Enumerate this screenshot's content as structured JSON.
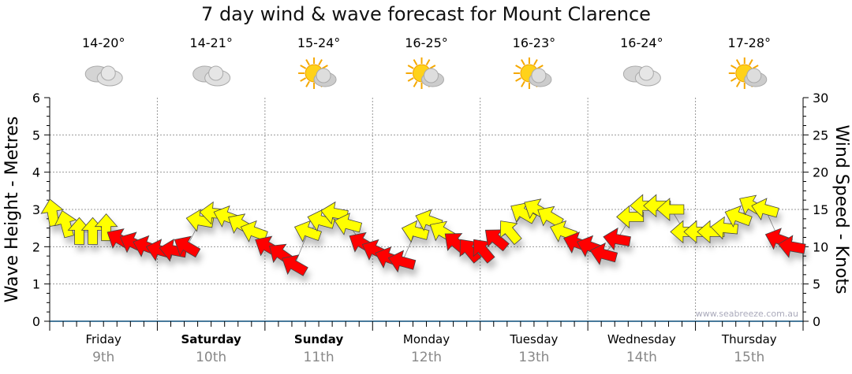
{
  "chart_data": {
    "type": "scatter",
    "title": "7 day wind & wave forecast for Mount Clarence",
    "ylabel_left": "Wave Height - Metres",
    "ylabel_right": "Wind Speed - Knots",
    "ylim_left": [
      0,
      6
    ],
    "ylim_right": [
      0,
      30
    ],
    "yticks_left": [
      "0",
      "1",
      "2",
      "3",
      "4",
      "5",
      "6"
    ],
    "yticks_right": [
      "0",
      "5",
      "10",
      "15",
      "20",
      "25",
      "30"
    ],
    "grid": true,
    "watermark": "www.seabreeze.com.au",
    "days": [
      {
        "day": "Friday",
        "date": "9th",
        "bold": false,
        "temp": "14-20°",
        "weather": "cloudy"
      },
      {
        "day": "Saturday",
        "date": "10th",
        "bold": true,
        "temp": "14-21°",
        "weather": "cloudy"
      },
      {
        "day": "Sunday",
        "date": "11th",
        "bold": true,
        "temp": "15-24°",
        "weather": "partly-sunny"
      },
      {
        "day": "Monday",
        "date": "12th",
        "bold": false,
        "temp": "16-25°",
        "weather": "partly-sunny"
      },
      {
        "day": "Tuesday",
        "date": "13th",
        "bold": false,
        "temp": "16-23°",
        "weather": "partly-sunny"
      },
      {
        "day": "Wednesday",
        "date": "14th",
        "bold": false,
        "temp": "16-24°",
        "weather": "cloudy"
      },
      {
        "day": "Thursday",
        "date": "15th",
        "bold": false,
        "temp": "17-28°",
        "weather": "partly-sunny"
      }
    ],
    "wind": {
      "step_hours": 3,
      "speed_knots": [
        14.5,
        13,
        12,
        12,
        12.5,
        11,
        10.5,
        10,
        9.5,
        9.5,
        10,
        13.5,
        14.5,
        14,
        13,
        12,
        10,
        9,
        7.5,
        12,
        13.5,
        14.5,
        13,
        10.5,
        9.5,
        8.5,
        8,
        12,
        13.5,
        12,
        10.5,
        9.5,
        9.5,
        11,
        12,
        14.5,
        15,
        14,
        12,
        10.5,
        10,
        9,
        11,
        14,
        15.5,
        15.5,
        15,
        12,
        12,
        12,
        12.5,
        14,
        15.5,
        15,
        11,
        10
      ],
      "bearing_deg": [
        350,
        345,
        0,
        0,
        0,
        300,
        295,
        290,
        285,
        280,
        300,
        280,
        275,
        290,
        300,
        290,
        300,
        305,
        300,
        290,
        285,
        280,
        285,
        300,
        295,
        290,
        285,
        285,
        290,
        300,
        310,
        320,
        320,
        310,
        320,
        300,
        300,
        300,
        290,
        290,
        290,
        285,
        280,
        270,
        270,
        270,
        270,
        270,
        270,
        270,
        275,
        290,
        300,
        285,
        290,
        280
      ],
      "color": [
        "y",
        "y",
        "y",
        "y",
        "y",
        "r",
        "r",
        "r",
        "r",
        "r",
        "r",
        "y",
        "y",
        "y",
        "y",
        "y",
        "r",
        "r",
        "r",
        "y",
        "y",
        "y",
        "y",
        "r",
        "r",
        "r",
        "r",
        "y",
        "y",
        "y",
        "r",
        "r",
        "r",
        "r",
        "y",
        "y",
        "y",
        "y",
        "y",
        "r",
        "r",
        "r",
        "r",
        "y",
        "y",
        "y",
        "y",
        "y",
        "y",
        "y",
        "y",
        "y",
        "y",
        "y",
        "r",
        "r"
      ]
    },
    "colors": {
      "y": "#ffff00",
      "r": "#ff0000",
      "axis": "#0b4f7a"
    }
  }
}
